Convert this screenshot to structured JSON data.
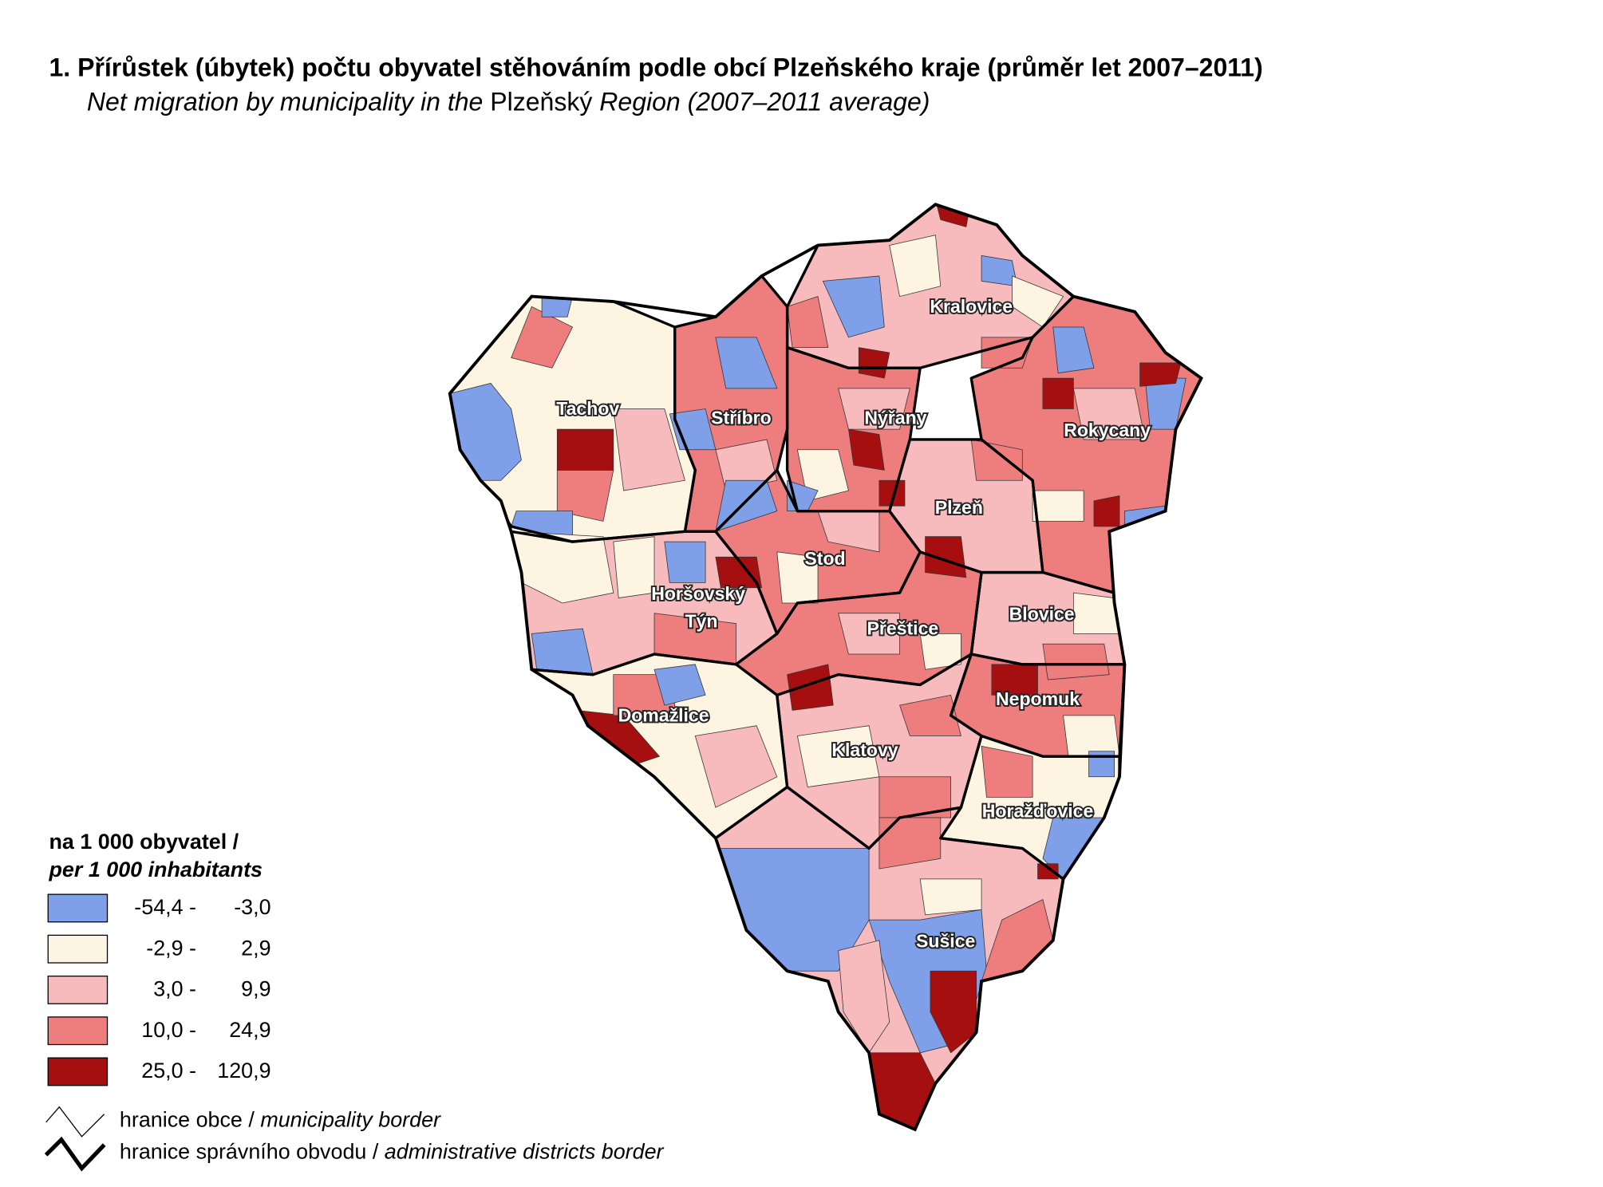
{
  "title": "1. Přírůstek (úbytek) počtu obyvatel stěhováním podle obcí Plzeňského kraje (průměr let 2007–2011)",
  "subtitle": {
    "part1": "Net migration by municipality in the ",
    "part2": "Plzeňský",
    "part3": " Region (2007–2011 average)"
  },
  "map": {
    "district_labels": [
      "Tachov",
      "Stříbro",
      "Kralovice",
      "Nýřany",
      "Rokycany",
      "Plzeň",
      "Stod",
      "Horšovský",
      "Týn",
      "Blovice",
      "Přeštice",
      "Nepomuk",
      "Domažlice",
      "Klatovy",
      "Horažďovice",
      "Sušice"
    ]
  },
  "legend": {
    "title": "na 1 000 obyvatel /",
    "title_en": "per 1 000 inhabitants",
    "classes": [
      {
        "from": "-54,4 -",
        "to": "-3,0",
        "color": "#7f9fe8"
      },
      {
        "from": "-2,9 -",
        "to": "2,9",
        "color": "#fdf5e1"
      },
      {
        "from": "3,0 -",
        "to": "9,9",
        "color": "#f7babd"
      },
      {
        "from": "10,0 -",
        "to": "24,9",
        "color": "#ee7d7d"
      },
      {
        "from": "25,0 -",
        "to": "120,9",
        "color": "#a50f0f"
      }
    ],
    "borders": [
      {
        "label": "hranice obce / ",
        "label_en": "municipality border"
      },
      {
        "label": "hranice správního obvodu / ",
        "label_en": "administrative districts border"
      }
    ]
  }
}
